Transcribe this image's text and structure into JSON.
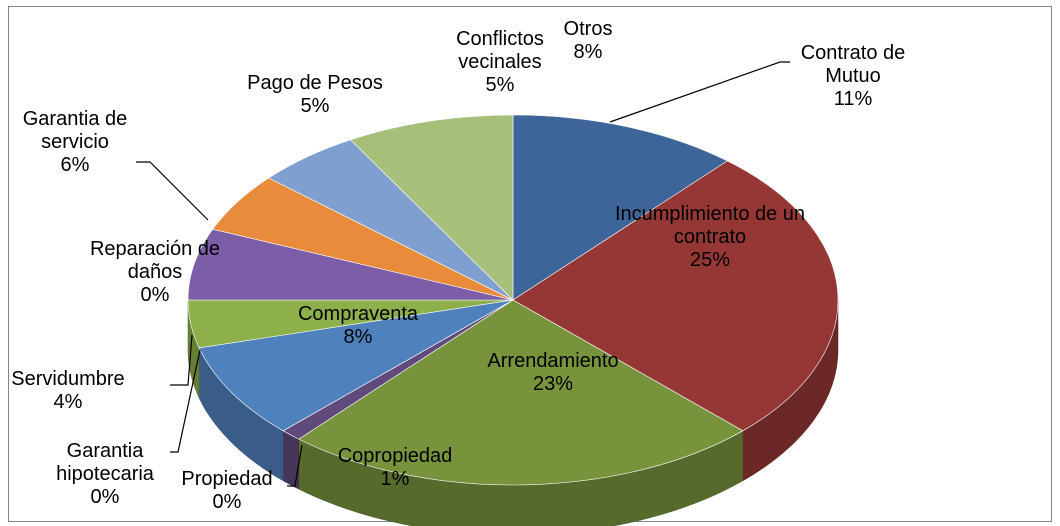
{
  "chart_data": {
    "type": "pie3d",
    "categories": [
      "Contrato de Mutuo",
      "Incumplimiento de un contrato",
      "Arrendamiento",
      "Copropiedad",
      "Propiedad",
      "Garantia hipotecaria",
      "Compraventa",
      "Servidumbre",
      "Reparación de daños",
      "Garantia de servicio",
      "Pago de Pesos",
      "Conflictos vecinales",
      "Otros"
    ],
    "values": [
      11,
      25,
      23,
      1,
      0,
      0,
      8,
      4,
      0,
      6,
      5,
      5,
      8
    ],
    "value_labels": [
      "11%",
      "25%",
      "23%",
      "1%",
      "0%",
      "0%",
      "8%",
      "4%",
      "0%",
      "6%",
      "5%",
      "5%",
      "8%"
    ],
    "colors": [
      "#3e659a",
      "#953735",
      "#77933c",
      "#5f4a7b",
      "#31859c",
      "#e46c0a",
      "#4f81bd",
      "#8eb04a",
      "#2f9aa8",
      "#7b5ea7",
      "#e88c3c",
      "#7f9fd0",
      "#a6c07a"
    ]
  }
}
